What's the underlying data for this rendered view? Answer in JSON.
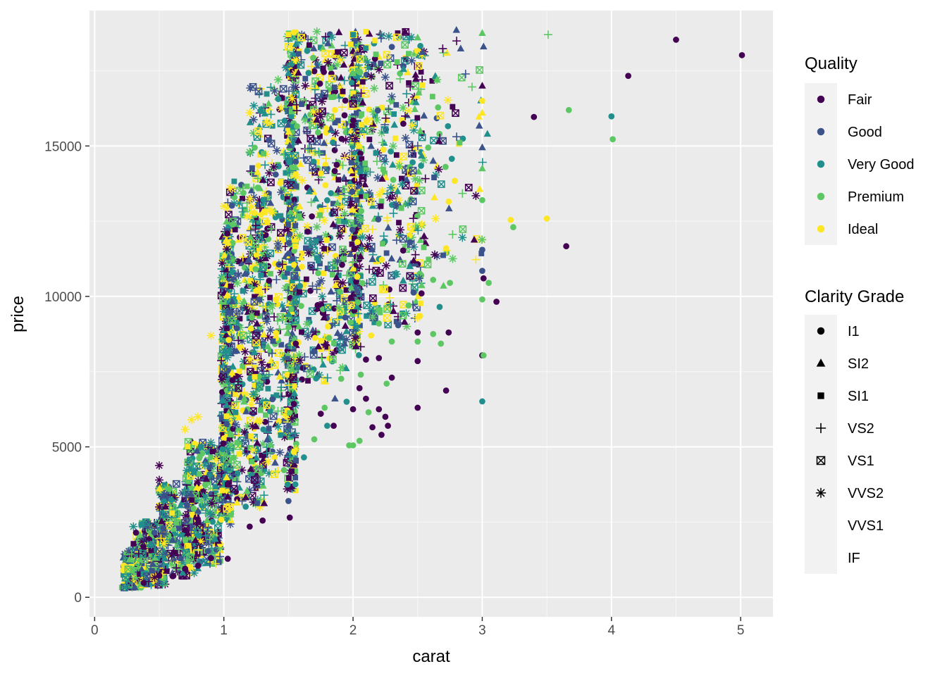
{
  "chart_data": {
    "type": "scatter",
    "title": "",
    "xlabel": "carat",
    "ylabel": "price",
    "xlim": [
      -0.04,
      5.25
    ],
    "ylim": [
      -650,
      19500
    ],
    "x_ticks": [
      0,
      1,
      2,
      3,
      4,
      5
    ],
    "y_ticks": [
      0,
      5000,
      10000,
      15000
    ],
    "grid": true,
    "legend_placement": "right",
    "legends": [
      {
        "title": "Quality",
        "kind": "color",
        "entries": [
          {
            "label": "Fair",
            "color": "#440154"
          },
          {
            "label": "Good",
            "color": "#3B528B"
          },
          {
            "label": "Very Good",
            "color": "#21908C"
          },
          {
            "label": "Premium",
            "color": "#5DC863"
          },
          {
            "label": "Ideal",
            "color": "#FDE725"
          }
        ]
      },
      {
        "title": "Clarity Grade",
        "kind": "shape",
        "entries": [
          {
            "label": "I1",
            "shape": "circle"
          },
          {
            "label": "SI2",
            "shape": "triangle"
          },
          {
            "label": "SI1",
            "shape": "square"
          },
          {
            "label": "VS2",
            "shape": "plus"
          },
          {
            "label": "VS1",
            "shape": "boxx"
          },
          {
            "label": "VVS2",
            "shape": "asterisk"
          },
          {
            "label": "VVS1",
            "shape": "none"
          },
          {
            "label": "IF",
            "shape": "none"
          }
        ]
      }
    ],
    "points": [
      {
        "x": 0.23,
        "y": 326,
        "cut": "Ideal",
        "clarity": "SI2"
      },
      {
        "x": 0.21,
        "y": 326,
        "cut": "Premium",
        "clarity": "SI1"
      },
      {
        "x": 0.23,
        "y": 327,
        "cut": "Good",
        "clarity": "VS1"
      },
      {
        "x": 0.29,
        "y": 334,
        "cut": "Premium",
        "clarity": "VS2"
      },
      {
        "x": 0.31,
        "y": 335,
        "cut": "Good",
        "clarity": "SI2"
      },
      {
        "x": 0.24,
        "y": 336,
        "cut": "Very Good",
        "clarity": "VVS2"
      },
      {
        "x": 0.3,
        "y": 2350,
        "cut": "Very Good",
        "clarity": "VVS2"
      },
      {
        "x": 0.32,
        "y": 2150,
        "cut": "Fair",
        "clarity": "I1"
      },
      {
        "x": 0.3,
        "y": 1780,
        "cut": "Fair",
        "clarity": "SI1"
      },
      {
        "x": 0.34,
        "y": 1450,
        "cut": "Fair",
        "clarity": "VS2"
      },
      {
        "x": 0.27,
        "y": 1250,
        "cut": "Premium",
        "clarity": "SI2"
      },
      {
        "x": 0.5,
        "y": 4380,
        "cut": "Fair",
        "clarity": "VVS2"
      },
      {
        "x": 0.5,
        "y": 3900,
        "cut": "Fair",
        "clarity": "VVS2"
      },
      {
        "x": 0.5,
        "y": 3000,
        "cut": "Fair",
        "clarity": "VVS2"
      },
      {
        "x": 0.55,
        "y": 2750,
        "cut": "Very Good",
        "clarity": "VS1"
      },
      {
        "x": 0.6,
        "y": 2800,
        "cut": "Ideal",
        "clarity": "SI1"
      },
      {
        "x": 0.7,
        "y": 5580,
        "cut": "Ideal",
        "clarity": "VVS2"
      },
      {
        "x": 0.75,
        "y": 5900,
        "cut": "Ideal",
        "clarity": "VVS2"
      },
      {
        "x": 0.8,
        "y": 6000,
        "cut": "Ideal",
        "clarity": "VVS2"
      },
      {
        "x": 0.9,
        "y": 8700,
        "cut": "Ideal",
        "clarity": "VVS2"
      },
      {
        "x": 1.0,
        "y": 13000,
        "cut": "Ideal",
        "clarity": "VVS2"
      },
      {
        "x": 1.05,
        "y": 13600,
        "cut": "Ideal",
        "clarity": "VVS2"
      },
      {
        "x": 1.12,
        "y": 13100,
        "cut": "Very Good",
        "clarity": "VVS2"
      },
      {
        "x": 1.2,
        "y": 14800,
        "cut": "Premium",
        "clarity": "VVS2"
      },
      {
        "x": 1.2,
        "y": 16100,
        "cut": "Ideal",
        "clarity": "VVS2"
      },
      {
        "x": 1.33,
        "y": 15800,
        "cut": "Ideal",
        "clarity": "VVS2"
      },
      {
        "x": 1.41,
        "y": 14850,
        "cut": "Good",
        "clarity": "VVS2"
      },
      {
        "x": 1.48,
        "y": 17600,
        "cut": "Very Good",
        "clarity": "VVS2"
      },
      {
        "x": 1.42,
        "y": 17200,
        "cut": "Premium",
        "clarity": "VVS2"
      },
      {
        "x": 1.5,
        "y": 18700,
        "cut": "Ideal",
        "clarity": "SI1"
      },
      {
        "x": 1.6,
        "y": 18600,
        "cut": "Ideal",
        "clarity": "VS1"
      },
      {
        "x": 1.72,
        "y": 18800,
        "cut": "Premium",
        "clarity": "VVS2"
      },
      {
        "x": 1.93,
        "y": 18100,
        "cut": "Fair",
        "clarity": "VS1"
      },
      {
        "x": 1.91,
        "y": 12250,
        "cut": "Fair",
        "clarity": "VS1"
      },
      {
        "x": 2.0,
        "y": 18700,
        "cut": "Very Good",
        "clarity": "SI1"
      },
      {
        "x": 2.1,
        "y": 18800,
        "cut": "Ideal",
        "clarity": "SI1"
      },
      {
        "x": 2.5,
        "y": 18600,
        "cut": "Premium",
        "clarity": "SI2"
      },
      {
        "x": 2.8,
        "y": 18850,
        "cut": "Good",
        "clarity": "SI2"
      },
      {
        "x": 3.0,
        "y": 18750,
        "cut": "Premium",
        "clarity": "SI2"
      },
      {
        "x": 3.01,
        "y": 18300,
        "cut": "Good",
        "clarity": "SI2"
      },
      {
        "x": 3.0,
        "y": 17000,
        "cut": "Fair",
        "clarity": "SI2"
      },
      {
        "x": 3.0,
        "y": 16100,
        "cut": "Ideal",
        "clarity": "SI2"
      },
      {
        "x": 3.0,
        "y": 14950,
        "cut": "Good",
        "clarity": "SI2"
      },
      {
        "x": 3.0,
        "y": 14250,
        "cut": "Premium",
        "clarity": "SI2"
      },
      {
        "x": 3.04,
        "y": 15400,
        "cut": "Very Good",
        "clarity": "SI2"
      },
      {
        "x": 2.52,
        "y": 15500,
        "cut": "Premium",
        "clarity": "SI2"
      },
      {
        "x": 2.62,
        "y": 14500,
        "cut": "Good",
        "clarity": "SI2"
      },
      {
        "x": 2.65,
        "y": 17200,
        "cut": "Premium",
        "clarity": "SI2"
      },
      {
        "x": 2.55,
        "y": 12000,
        "cut": "Fair",
        "clarity": "SI2"
      },
      {
        "x": 2.7,
        "y": 10350,
        "cut": "Premium",
        "clarity": "SI2"
      },
      {
        "x": 2.44,
        "y": 11000,
        "cut": "Very Good",
        "clarity": "SI2"
      },
      {
        "x": 3.51,
        "y": 18700,
        "cut": "Premium",
        "clarity": "VS2"
      },
      {
        "x": 4.5,
        "y": 18531,
        "cut": "Fair",
        "clarity": "I1"
      },
      {
        "x": 5.01,
        "y": 18018,
        "cut": "Fair",
        "clarity": "I1"
      },
      {
        "x": 4.13,
        "y": 17329,
        "cut": "Fair",
        "clarity": "I1"
      },
      {
        "x": 3.4,
        "y": 15964,
        "cut": "Fair",
        "clarity": "I1"
      },
      {
        "x": 3.67,
        "y": 16193,
        "cut": "Premium",
        "clarity": "I1"
      },
      {
        "x": 4.0,
        "y": 15984,
        "cut": "Very Good",
        "clarity": "I1"
      },
      {
        "x": 4.01,
        "y": 15223,
        "cut": "Premium",
        "clarity": "I1"
      },
      {
        "x": 3.0,
        "y": 16500,
        "cut": "Ideal",
        "clarity": "I1"
      },
      {
        "x": 3.65,
        "y": 11668,
        "cut": "Fair",
        "clarity": "I1"
      },
      {
        "x": 3.5,
        "y": 12587,
        "cut": "Ideal",
        "clarity": "I1"
      },
      {
        "x": 3.22,
        "y": 12545,
        "cut": "Ideal",
        "clarity": "I1"
      },
      {
        "x": 3.24,
        "y": 12300,
        "cut": "Premium",
        "clarity": "I1"
      },
      {
        "x": 2.74,
        "y": 13150,
        "cut": "Ideal",
        "clarity": "I1"
      },
      {
        "x": 3.0,
        "y": 13200,
        "cut": "Premium",
        "clarity": "I1"
      },
      {
        "x": 3.0,
        "y": 11550,
        "cut": "Good",
        "clarity": "I1"
      },
      {
        "x": 2.72,
        "y": 11600,
        "cut": "Ideal",
        "clarity": "I1"
      },
      {
        "x": 3.0,
        "y": 10850,
        "cut": "Good",
        "clarity": "I1"
      },
      {
        "x": 3.01,
        "y": 10600,
        "cut": "Fair",
        "clarity": "I1"
      },
      {
        "x": 3.05,
        "y": 10450,
        "cut": "Premium",
        "clarity": "I1"
      },
      {
        "x": 3.11,
        "y": 9823,
        "cut": "Fair",
        "clarity": "I1"
      },
      {
        "x": 3.0,
        "y": 9900,
        "cut": "Premium",
        "clarity": "I1"
      },
      {
        "x": 2.67,
        "y": 9650,
        "cut": "Very Good",
        "clarity": "I1"
      },
      {
        "x": 2.53,
        "y": 10100,
        "cut": "Fair",
        "clarity": "I1"
      },
      {
        "x": 2.62,
        "y": 10550,
        "cut": "Premium",
        "clarity": "I1"
      },
      {
        "x": 2.75,
        "y": 10450,
        "cut": "Premium",
        "clarity": "I1"
      },
      {
        "x": 2.43,
        "y": 9700,
        "cut": "Premium",
        "clarity": "I1"
      },
      {
        "x": 2.74,
        "y": 8800,
        "cut": "Fair",
        "clarity": "I1"
      },
      {
        "x": 2.5,
        "y": 8800,
        "cut": "Fair",
        "clarity": "I1"
      },
      {
        "x": 2.62,
        "y": 8750,
        "cut": "Premium",
        "clarity": "I1"
      },
      {
        "x": 2.68,
        "y": 8430,
        "cut": "Premium",
        "clarity": "I1"
      },
      {
        "x": 2.5,
        "y": 8500,
        "cut": "Premium",
        "clarity": "I1"
      },
      {
        "x": 2.5,
        "y": 7850,
        "cut": "Fair",
        "clarity": "I1"
      },
      {
        "x": 3.0,
        "y": 8040,
        "cut": "Fair",
        "clarity": "I1"
      },
      {
        "x": 3.01,
        "y": 8040,
        "cut": "Premium",
        "clarity": "I1"
      },
      {
        "x": 3.0,
        "y": 6510,
        "cut": "Very Good",
        "clarity": "I1"
      },
      {
        "x": 2.72,
        "y": 6870,
        "cut": "Fair",
        "clarity": "I1"
      },
      {
        "x": 2.5,
        "y": 6300,
        "cut": "Fair",
        "clarity": "I1"
      },
      {
        "x": 2.3,
        "y": 7300,
        "cut": "Fair",
        "clarity": "I1"
      },
      {
        "x": 2.26,
        "y": 7100,
        "cut": "Premium",
        "clarity": "I1"
      },
      {
        "x": 2.3,
        "y": 8500,
        "cut": "Premium",
        "clarity": "I1"
      },
      {
        "x": 2.2,
        "y": 9100,
        "cut": "Premium",
        "clarity": "I1"
      },
      {
        "x": 2.2,
        "y": 7950,
        "cut": "Fair",
        "clarity": "I1"
      },
      {
        "x": 2.14,
        "y": 8700,
        "cut": "Ideal",
        "clarity": "I1"
      },
      {
        "x": 2.1,
        "y": 7900,
        "cut": "Fair",
        "clarity": "I1"
      },
      {
        "x": 2.06,
        "y": 7400,
        "cut": "Premium",
        "clarity": "I1"
      },
      {
        "x": 2.05,
        "y": 6950,
        "cut": "Fair",
        "clarity": "I1"
      },
      {
        "x": 2.1,
        "y": 6600,
        "cut": "Fair",
        "clarity": "I1"
      },
      {
        "x": 2.0,
        "y": 6250,
        "cut": "Fair",
        "clarity": "I1"
      },
      {
        "x": 2.12,
        "y": 6150,
        "cut": "Premium",
        "clarity": "I1"
      },
      {
        "x": 2.2,
        "y": 6250,
        "cut": "Fair",
        "clarity": "I1"
      },
      {
        "x": 2.25,
        "y": 6000,
        "cut": "Fair",
        "clarity": "I1"
      },
      {
        "x": 2.15,
        "y": 5650,
        "cut": "Fair",
        "clarity": "I1"
      },
      {
        "x": 2.27,
        "y": 5700,
        "cut": "Fair",
        "clarity": "I1"
      },
      {
        "x": 2.22,
        "y": 5400,
        "cut": "Fair",
        "clarity": "I1"
      },
      {
        "x": 2.05,
        "y": 5200,
        "cut": "Premium",
        "clarity": "I1"
      },
      {
        "x": 2.0,
        "y": 5050,
        "cut": "Premium",
        "clarity": "I1"
      },
      {
        "x": 1.97,
        "y": 5050,
        "cut": "Premium",
        "clarity": "I1"
      },
      {
        "x": 1.85,
        "y": 5700,
        "cut": "Fair",
        "clarity": "I1"
      },
      {
        "x": 1.8,
        "y": 5700,
        "cut": "Very Good",
        "clarity": "I1"
      },
      {
        "x": 1.75,
        "y": 6100,
        "cut": "Fair",
        "clarity": "I1"
      },
      {
        "x": 1.78,
        "y": 6300,
        "cut": "Premium",
        "clarity": "I1"
      },
      {
        "x": 1.86,
        "y": 6600,
        "cut": "Good",
        "clarity": "SI2"
      },
      {
        "x": 1.95,
        "y": 6500,
        "cut": "Very Good",
        "clarity": "I1"
      },
      {
        "x": 1.7,
        "y": 5250,
        "cut": "Premium",
        "clarity": "I1"
      },
      {
        "x": 1.62,
        "y": 4650,
        "cut": "Very Good",
        "clarity": "I1"
      },
      {
        "x": 1.51,
        "y": 2650,
        "cut": "Fair",
        "clarity": "I1"
      },
      {
        "x": 1.5,
        "y": 3200,
        "cut": "Good",
        "clarity": "I1"
      },
      {
        "x": 1.03,
        "y": 1280,
        "cut": "Fair",
        "clarity": "I1"
      },
      {
        "x": 0.9,
        "y": 1300,
        "cut": "Fair",
        "clarity": "I1"
      },
      {
        "x": 0.8,
        "y": 1050,
        "cut": "Fair",
        "clarity": "I1"
      },
      {
        "x": 0.7,
        "y": 950,
        "cut": "Fair",
        "clarity": "I1"
      },
      {
        "x": 0.5,
        "y": 720,
        "cut": "Fair",
        "clarity": "I1"
      },
      {
        "x": 0.38,
        "y": 480,
        "cut": "Fair",
        "clarity": "I1"
      },
      {
        "x": 1.3,
        "y": 2550,
        "cut": "Fair",
        "clarity": "I1"
      },
      {
        "x": 1.2,
        "y": 2350,
        "cut": "Fair",
        "clarity": "I1"
      }
    ],
    "clusters": [
      {
        "x": [
          0.22,
          0.36
        ],
        "y": [
          320,
          1600
        ],
        "n": 160
      },
      {
        "x": [
          0.32,
          0.55
        ],
        "y": [
          400,
          2500
        ],
        "n": 240
      },
      {
        "x": [
          0.5,
          0.8
        ],
        "y": [
          700,
          3800
        ],
        "n": 260
      },
      {
        "x": [
          0.7,
          0.99
        ],
        "y": [
          1100,
          5200
        ],
        "n": 300
      },
      {
        "x": [
          0.98,
          1.06
        ],
        "y": [
          2400,
          12500
        ],
        "n": 320
      },
      {
        "x": [
          1.02,
          1.35
        ],
        "y": [
          3000,
          14000
        ],
        "n": 420
      },
      {
        "x": [
          1.2,
          1.49
        ],
        "y": [
          4000,
          17000
        ],
        "n": 320
      },
      {
        "x": [
          1.49,
          1.56
        ],
        "y": [
          3500,
          18800
        ],
        "n": 420
      },
      {
        "x": [
          1.55,
          1.95
        ],
        "y": [
          7000,
          18800
        ],
        "n": 460
      },
      {
        "x": [
          1.98,
          2.06
        ],
        "y": [
          8000,
          18800
        ],
        "n": 320
      },
      {
        "x": [
          2.05,
          2.55
        ],
        "y": [
          9000,
          18800
        ],
        "n": 380
      },
      {
        "x": [
          2.5,
          3.01
        ],
        "y": [
          11000,
          18800
        ],
        "n": 80
      }
    ]
  }
}
